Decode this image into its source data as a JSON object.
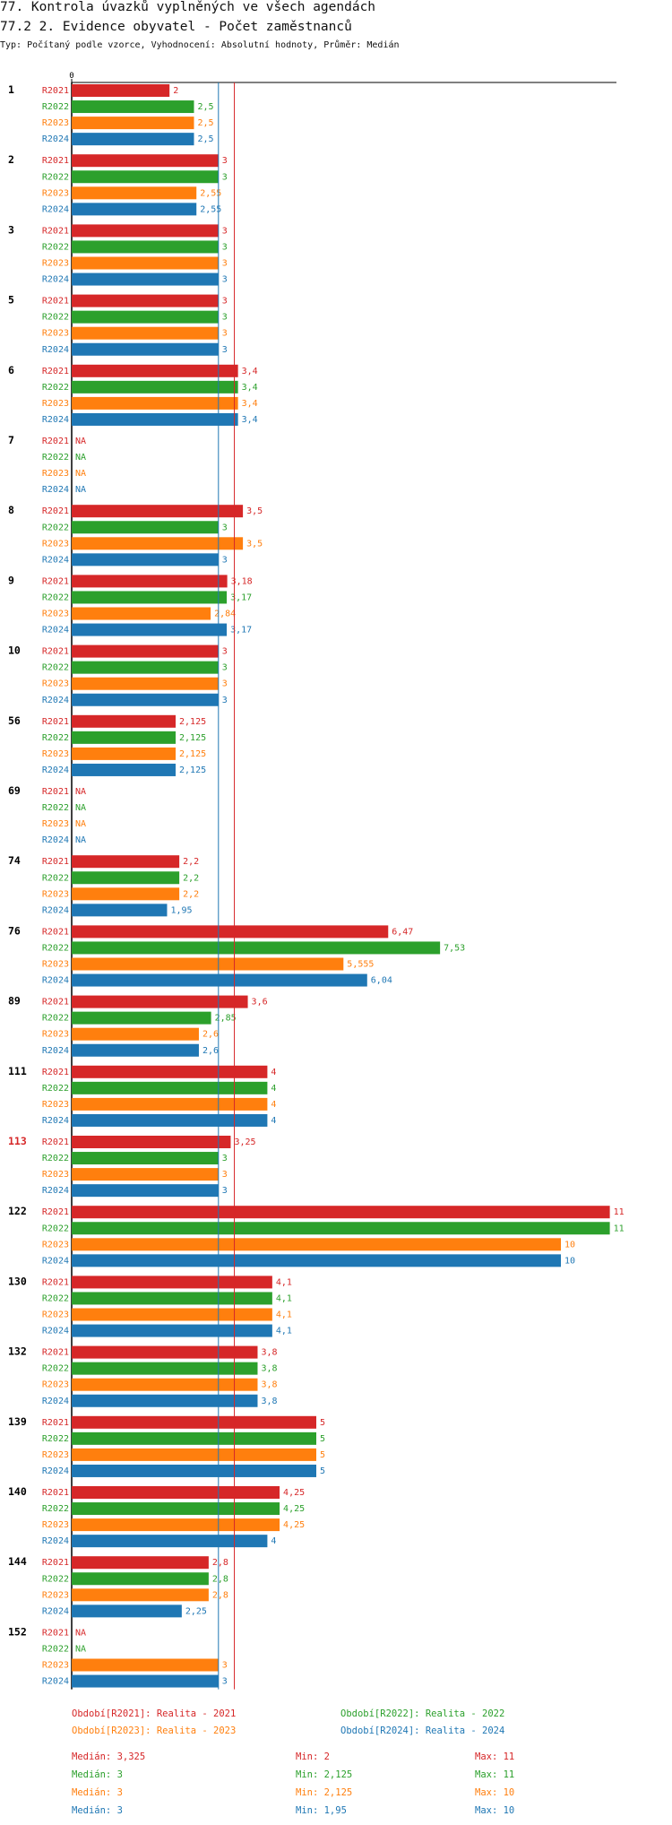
{
  "title": "77. Kontrola úvazků vyplněných ve všech agendách",
  "subtitle": "77.2 2. Evidence obyvatel - Počet zaměstnanců",
  "description": "Typ: Počítaný podle vzorce, Vyhodnocení: Absolutní hodnoty, Průměr: Medián",
  "colors": {
    "R2021": "#d62728",
    "R2022": "#2ca02c",
    "R2023": "#ff7f0e",
    "R2024": "#1f77b4",
    "highlight": "#d62728",
    "text": "#111111"
  },
  "chart_data": {
    "type": "bar",
    "orientation": "horizontal",
    "title": "77.2 2. Evidence obyvatel - Počet zaměstnanců",
    "xlim": [
      0,
      11
    ],
    "xticks": [
      "0"
    ],
    "series_names": [
      "R2021",
      "R2022",
      "R2023",
      "R2024"
    ],
    "reference_lines": [
      {
        "name": "Medián R2021",
        "value": 3.325,
        "color": "#d62728"
      },
      {
        "name": "Medián R2022-R2024",
        "value": 3,
        "color": "#1f77b4"
      }
    ],
    "categories": [
      {
        "label": "1",
        "highlight": false,
        "values": [
          2,
          2.5,
          2.5,
          2.5
        ],
        "labels": [
          "2",
          "2,5",
          "2,5",
          "2,5"
        ]
      },
      {
        "label": "2",
        "highlight": false,
        "values": [
          3,
          3,
          2.55,
          2.55
        ],
        "labels": [
          "3",
          "3",
          "2,55",
          "2,55"
        ]
      },
      {
        "label": "3",
        "highlight": false,
        "values": [
          3,
          3,
          3,
          3
        ],
        "labels": [
          "3",
          "3",
          "3",
          "3"
        ]
      },
      {
        "label": "5",
        "highlight": false,
        "values": [
          3,
          3,
          3,
          3
        ],
        "labels": [
          "3",
          "3",
          "3",
          "3"
        ]
      },
      {
        "label": "6",
        "highlight": false,
        "values": [
          3.4,
          3.4,
          3.4,
          3.4
        ],
        "labels": [
          "3,4",
          "3,4",
          "3,4",
          "3,4"
        ]
      },
      {
        "label": "7",
        "highlight": false,
        "values": [
          null,
          null,
          null,
          null
        ],
        "labels": [
          "NA",
          "NA",
          "NA",
          "NA"
        ]
      },
      {
        "label": "8",
        "highlight": false,
        "values": [
          3.5,
          3,
          3.5,
          3
        ],
        "labels": [
          "3,5",
          "3",
          "3,5",
          "3"
        ]
      },
      {
        "label": "9",
        "highlight": false,
        "values": [
          3.18,
          3.17,
          2.84,
          3.17
        ],
        "labels": [
          "3,18",
          "3,17",
          "2,84",
          "3,17"
        ]
      },
      {
        "label": "10",
        "highlight": false,
        "values": [
          3,
          3,
          3,
          3
        ],
        "labels": [
          "3",
          "3",
          "3",
          "3"
        ]
      },
      {
        "label": "56",
        "highlight": false,
        "values": [
          2.125,
          2.125,
          2.125,
          2.125
        ],
        "labels": [
          "2,125",
          "2,125",
          "2,125",
          "2,125"
        ]
      },
      {
        "label": "69",
        "highlight": false,
        "values": [
          null,
          null,
          null,
          null
        ],
        "labels": [
          "NA",
          "NA",
          "NA",
          "NA"
        ]
      },
      {
        "label": "74",
        "highlight": false,
        "values": [
          2.2,
          2.2,
          2.2,
          1.95
        ],
        "labels": [
          "2,2",
          "2,2",
          "2,2",
          "1,95"
        ]
      },
      {
        "label": "76",
        "highlight": false,
        "values": [
          6.47,
          7.53,
          5.555,
          6.04
        ],
        "labels": [
          "6,47",
          "7,53",
          "5,555",
          "6,04"
        ]
      },
      {
        "label": "89",
        "highlight": false,
        "values": [
          3.6,
          2.85,
          2.6,
          2.6
        ],
        "labels": [
          "3,6",
          "2,85",
          "2,6",
          "2,6"
        ]
      },
      {
        "label": "111",
        "highlight": false,
        "values": [
          4,
          4,
          4,
          4
        ],
        "labels": [
          "4",
          "4",
          "4",
          "4"
        ]
      },
      {
        "label": "113",
        "highlight": true,
        "values": [
          3.25,
          3,
          3,
          3
        ],
        "labels": [
          "3,25",
          "3",
          "3",
          "3"
        ]
      },
      {
        "label": "122",
        "highlight": false,
        "values": [
          11,
          11,
          10,
          10
        ],
        "labels": [
          "11",
          "11",
          "10",
          "10"
        ]
      },
      {
        "label": "130",
        "highlight": false,
        "values": [
          4.1,
          4.1,
          4.1,
          4.1
        ],
        "labels": [
          "4,1",
          "4,1",
          "4,1",
          "4,1"
        ]
      },
      {
        "label": "132",
        "highlight": false,
        "values": [
          3.8,
          3.8,
          3.8,
          3.8
        ],
        "labels": [
          "3,8",
          "3,8",
          "3,8",
          "3,8"
        ]
      },
      {
        "label": "139",
        "highlight": false,
        "values": [
          5,
          5,
          5,
          5
        ],
        "labels": [
          "5",
          "5",
          "5",
          "5"
        ]
      },
      {
        "label": "140",
        "highlight": false,
        "values": [
          4.25,
          4.25,
          4.25,
          4
        ],
        "labels": [
          "4,25",
          "4,25",
          "4,25",
          "4"
        ]
      },
      {
        "label": "144",
        "highlight": false,
        "values": [
          2.8,
          2.8,
          2.8,
          2.25
        ],
        "labels": [
          "2,8",
          "2,8",
          "2,8",
          "2,25"
        ]
      },
      {
        "label": "152",
        "highlight": false,
        "values": [
          null,
          null,
          3,
          3
        ],
        "labels": [
          "NA",
          "NA",
          "3",
          "3"
        ]
      }
    ]
  },
  "legend": {
    "periods": [
      {
        "text": "Období[R2021]: Realita - 2021",
        "series": "R2021"
      },
      {
        "text": "Období[R2022]: Realita - 2022",
        "series": "R2022"
      },
      {
        "text": "Období[R2023]: Realita - 2023",
        "series": "R2023"
      },
      {
        "text": "Období[R2024]: Realita - 2024",
        "series": "R2024"
      }
    ],
    "stats": [
      {
        "series": "R2021",
        "median": "Medián: 3,325",
        "min": "Min: 2",
        "max": "Max: 11"
      },
      {
        "series": "R2022",
        "median": "Medián: 3",
        "min": "Min: 2,125",
        "max": "Max: 11"
      },
      {
        "series": "R2023",
        "median": "Medián: 3",
        "min": "Min: 2,125",
        "max": "Max: 10"
      },
      {
        "series": "R2024",
        "median": "Medián: 3",
        "min": "Min: 1,95",
        "max": "Max: 10"
      }
    ]
  }
}
